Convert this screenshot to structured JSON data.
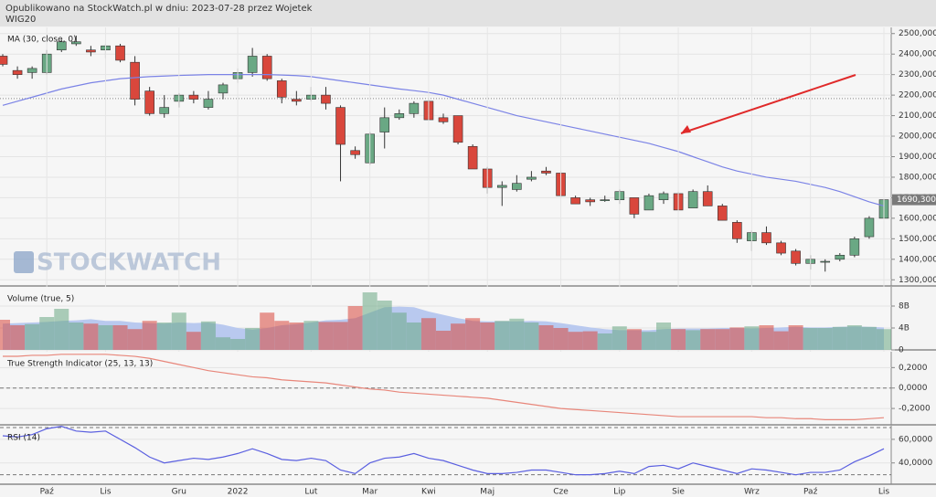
{
  "header": {
    "text": "Opublikowano na StockWatch.pl w dniu: 2023-07-28 przez Wojetek",
    "symbol": "WIG20",
    "watermark": "STOCKWATCH"
  },
  "chart_data": [
    {
      "type": "candlestick",
      "title": "MA (30, close, 0)",
      "categories": [
        null,
        null,
        null,
        "Paź",
        null,
        null,
        null,
        "Lis",
        null,
        null,
        null,
        null,
        "Gru",
        null,
        null,
        null,
        "2022",
        null,
        null,
        null,
        null,
        "Lut",
        null,
        null,
        null,
        "Mar",
        null,
        null,
        null,
        "Kwi",
        null,
        null,
        null,
        "Maj",
        null,
        null,
        null,
        null,
        "Cze",
        null,
        null,
        null,
        "Lip",
        null,
        null,
        null,
        "Sie",
        null,
        null,
        null,
        null,
        "Wrz",
        null,
        null,
        null,
        "Paź",
        null,
        null,
        null,
        null,
        "Lis"
      ],
      "open": [
        2390,
        2320,
        2310,
        2310,
        2420,
        2450,
        2420,
        2420,
        2440,
        2360,
        2220,
        2110,
        2170,
        2200,
        2140,
        2210,
        2280,
        2310,
        2390,
        2270,
        2180,
        2180,
        2200,
        2140,
        1930,
        1870,
        2020,
        2090,
        2110,
        2170,
        2090,
        2100,
        1950,
        1840,
        1750,
        1740,
        1790,
        1830,
        1820,
        1700,
        1690,
        1690,
        1690,
        1700,
        1640,
        1690,
        1720,
        1650,
        1730,
        1660,
        1580,
        1490,
        1530,
        1480,
        1440,
        1380,
        1390,
        1400,
        1420,
        1510,
        1600
      ],
      "high": [
        2400,
        2340,
        2340,
        2420,
        2470,
        2490,
        2440,
        2450,
        2450,
        2390,
        2240,
        2200,
        2210,
        2220,
        2220,
        2260,
        2330,
        2430,
        2400,
        2280,
        2220,
        2240,
        2240,
        2150,
        1950,
        2020,
        2140,
        2130,
        2170,
        2180,
        2110,
        2100,
        1960,
        1850,
        1780,
        1810,
        1830,
        1850,
        1830,
        1710,
        1700,
        1710,
        1740,
        1700,
        1720,
        1730,
        1730,
        1740,
        1760,
        1670,
        1590,
        1540,
        1560,
        1490,
        1450,
        1420,
        1400,
        1430,
        1510,
        1610,
        1690.3
      ],
      "low": [
        2340,
        2280,
        2280,
        2300,
        2410,
        2440,
        2390,
        2380,
        2360,
        2150,
        2100,
        2090,
        2140,
        2160,
        2130,
        2180,
        2260,
        2290,
        2270,
        2160,
        2150,
        2170,
        2130,
        1780,
        1890,
        1860,
        1940,
        2080,
        2090,
        2080,
        2060,
        1960,
        1840,
        1720,
        1660,
        1730,
        1780,
        1810,
        1700,
        1670,
        1660,
        1680,
        1670,
        1600,
        1640,
        1670,
        1640,
        1650,
        1660,
        1590,
        1480,
        1440,
        1470,
        1420,
        1370,
        1350,
        1340,
        1390,
        1410,
        1500,
        1590
      ],
      "close": [
        2350,
        2300,
        2330,
        2400,
        2460,
        2460,
        2410,
        2440,
        2370,
        2180,
        2110,
        2140,
        2200,
        2180,
        2180,
        2250,
        2310,
        2390,
        2280,
        2190,
        2170,
        2200,
        2160,
        1960,
        1910,
        2010,
        2090,
        2110,
        2160,
        2080,
        2070,
        1970,
        1840,
        1750,
        1760,
        1770,
        1800,
        1820,
        1710,
        1670,
        1680,
        1690,
        1730,
        1620,
        1710,
        1720,
        1640,
        1730,
        1660,
        1590,
        1500,
        1530,
        1480,
        1430,
        1380,
        1400,
        1390,
        1420,
        1500,
        1600,
        1690.3
      ],
      "last_label": "1690,3000",
      "up_color": "#6aa884",
      "down_color": "#d9473c",
      "ma": {
        "color": "#7b83e6",
        "values": [
          2150,
          2170,
          2190,
          2210,
          2230,
          2245,
          2260,
          2270,
          2280,
          2285,
          2290,
          2293,
          2296,
          2298,
          2300,
          2300,
          2300,
          2300,
          2300,
          2298,
          2295,
          2290,
          2280,
          2270,
          2260,
          2250,
          2240,
          2230,
          2222,
          2213,
          2200,
          2180,
          2160,
          2140,
          2120,
          2100,
          2085,
          2070,
          2055,
          2040,
          2025,
          2010,
          1995,
          1980,
          1965,
          1945,
          1925,
          1900,
          1875,
          1850,
          1830,
          1815,
          1800,
          1790,
          1780,
          1765,
          1750,
          1730,
          1705,
          1680,
          1660
        ]
      },
      "reference_line": 2183,
      "ylim": [
        1270,
        2530
      ],
      "yticks": [
        {
          "value": 1300,
          "label": "1300,0000"
        },
        {
          "value": 1400,
          "label": "1400,0000"
        },
        {
          "value": 1500,
          "label": "1500,0000"
        },
        {
          "value": 1600,
          "label": "1600,0000"
        },
        {
          "value": 1700,
          "label": "1700,0000"
        },
        {
          "value": 1800,
          "label": "1800,0000"
        },
        {
          "value": 1900,
          "label": "1900,0000"
        },
        {
          "value": 2000,
          "label": "2000,0000"
        },
        {
          "value": 2100,
          "label": "2100,0000"
        },
        {
          "value": 2200,
          "label": "2200,0000"
        },
        {
          "value": 2300,
          "label": "2300,0000"
        },
        {
          "value": 2400,
          "label": "2400,0000"
        },
        {
          "value": 2500,
          "label": "2500,0000"
        }
      ]
    },
    {
      "type": "bar",
      "title": "Volume (true, 5)",
      "values": [
        5.5,
        4.5,
        4.7,
        6,
        7.5,
        5,
        4.8,
        4.5,
        4.5,
        3.8,
        5.3,
        5,
        6.8,
        3.3,
        5.2,
        2.3,
        2,
        4,
        6.8,
        5.3,
        5,
        5.3,
        5.1,
        5.1,
        8,
        10.5,
        9,
        6.8,
        5,
        5.8,
        3.5,
        4.8,
        5.8,
        5,
        5.3,
        5.7,
        5,
        4.5,
        4,
        3.3,
        3.4,
        3,
        4.3,
        3.8,
        3.3,
        5,
        3.8,
        3.6,
        3.8,
        3.8,
        4.1,
        4.3,
        4.5,
        3.4,
        4.5,
        4,
        4,
        4.2,
        4.5,
        4.2,
        3.8
      ],
      "ma": {
        "color": "#b9c9ef",
        "values": [
          4.8,
          4.9,
          5,
          5.1,
          5.3,
          5.4,
          5.6,
          5.3,
          5.3,
          5,
          4.9,
          4.8,
          5,
          4.9,
          5,
          4.6,
          4,
          3.7,
          4,
          4.5,
          4.7,
          5,
          5.4,
          5.5,
          5.8,
          6.8,
          7.8,
          7.9,
          7.8,
          7,
          6.4,
          5.8,
          5.3,
          5.2,
          5.2,
          5.2,
          5.3,
          5.2,
          4.9,
          4.5,
          4.1,
          3.8,
          3.6,
          3.6,
          3.6,
          3.8,
          3.9,
          3.9,
          3.9,
          4,
          4,
          3.9,
          4,
          4.1,
          4.2,
          4.1,
          4.1,
          4.2,
          4.3,
          4.2,
          4.1
        ]
      },
      "ylim": [
        0,
        11.5
      ],
      "yticks": [
        0,
        {
          "value": 4,
          "label": "4B"
        },
        {
          "value": 8,
          "label": "8B"
        }
      ]
    },
    {
      "type": "line",
      "title": "True Strength Indicator (25, 13, 13)",
      "color": "#e8867a",
      "values": [
        0.31,
        0.31,
        0.32,
        0.32,
        0.33,
        0.33,
        0.33,
        0.33,
        0.32,
        0.31,
        0.29,
        0.26,
        0.23,
        0.2,
        0.17,
        0.15,
        0.13,
        0.11,
        0.1,
        0.08,
        0.07,
        0.06,
        0.05,
        0.03,
        0.01,
        -0.01,
        -0.02,
        -0.04,
        -0.05,
        -0.06,
        -0.07,
        -0.08,
        -0.09,
        -0.1,
        -0.12,
        -0.14,
        -0.16,
        -0.18,
        -0.2,
        -0.21,
        -0.22,
        -0.23,
        -0.24,
        -0.25,
        -0.26,
        -0.27,
        -0.28,
        -0.28,
        -0.28,
        -0.28,
        -0.28,
        -0.28,
        -0.29,
        -0.29,
        -0.3,
        -0.3,
        -0.31,
        -0.31,
        -0.31,
        -0.3,
        -0.29
      ],
      "reference_lines": [
        0
      ],
      "ylim": [
        -0.36,
        0.355
      ],
      "yticks": [
        {
          "value": -0.2,
          "label": "-0,2000"
        },
        {
          "value": 0,
          "label": "0,0000"
        },
        {
          "value": 0.2,
          "label": "0,2000"
        }
      ]
    },
    {
      "type": "line",
      "title": "RSI (14)",
      "color": "#5a5fe0",
      "values": [
        63,
        62,
        64,
        69,
        71,
        67,
        66,
        67,
        60,
        53,
        45,
        40,
        42,
        44,
        43,
        45,
        48,
        52,
        48,
        43,
        42,
        44,
        42,
        34,
        31,
        40,
        44,
        45,
        48,
        44,
        42,
        38,
        34,
        31,
        31,
        32,
        34,
        34,
        32,
        30,
        30,
        31,
        33,
        31,
        37,
        38,
        35,
        40,
        37,
        34,
        31,
        35,
        34,
        32,
        30,
        32,
        32,
        34,
        41,
        46,
        52
      ],
      "reference_lines": [
        30,
        70
      ],
      "ylim": [
        22,
        71.5
      ],
      "yticks": [
        {
          "value": 40,
          "label": "40,0000"
        },
        {
          "value": 60,
          "label": "60,0000"
        }
      ]
    }
  ]
}
